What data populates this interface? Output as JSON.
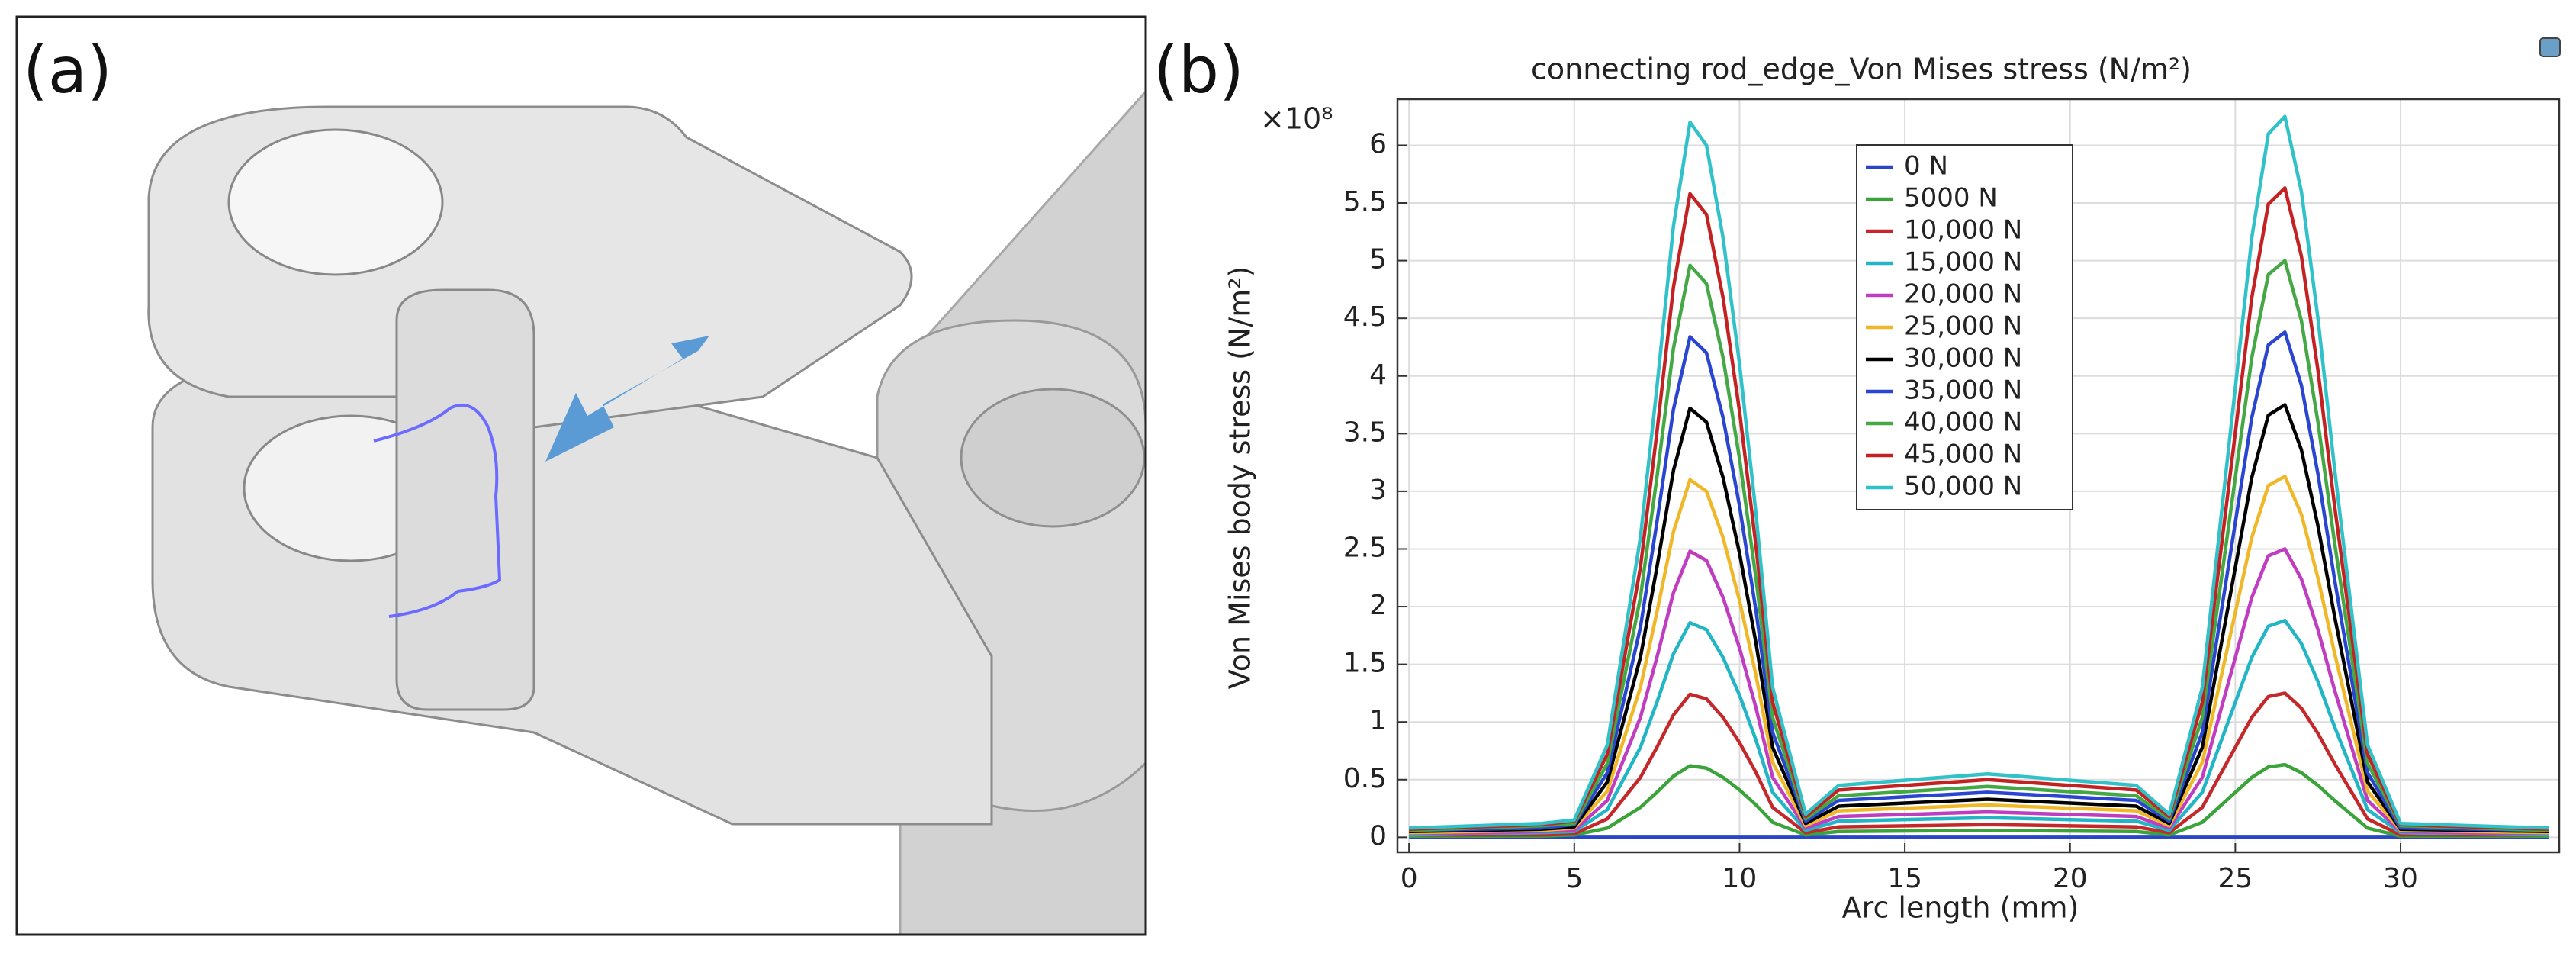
{
  "panels": [
    "(a)",
    "(b)"
  ],
  "chart_data": {
    "type": "line",
    "title": "connecting rod_edge_Von Mises stress (N/m²)",
    "x_label": "Arc length (mm)",
    "y_label": "Von Mises body stress (N/m²)",
    "y_multiplier": "×10⁸",
    "xlim": [
      -0.35,
      34.8
    ],
    "ylim": [
      -0.13,
      6.4
    ],
    "xticks": [
      0,
      5,
      10,
      15,
      20,
      25,
      30
    ],
    "yticks": [
      0,
      0.5,
      1,
      1.5,
      2,
      2.5,
      3,
      3.5,
      4,
      4.5,
      5,
      5.5,
      6
    ],
    "grid": true,
    "legend": "upper center",
    "x": [
      0,
      4,
      5,
      6,
      7,
      7.5,
      8,
      8.5,
      9,
      9.5,
      10,
      10.5,
      11,
      12,
      13,
      17.5,
      22,
      23,
      24,
      24.5,
      25,
      25.5,
      26,
      26.5,
      27,
      27.5,
      28,
      29,
      30,
      34.5
    ],
    "series": [
      {
        "name": "0 N",
        "color": "#2a46c8",
        "values": [
          0,
          0,
          0,
          0,
          0,
          0,
          0,
          0,
          0,
          0,
          0,
          0,
          0,
          0,
          0,
          0,
          0,
          0,
          0,
          0,
          0,
          0,
          0,
          0,
          0,
          0,
          0,
          0,
          0,
          0
        ]
      },
      {
        "name": "5000 N",
        "color": "#3aa33a",
        "values": [
          0.01,
          0.01,
          0.02,
          0.08,
          0.26,
          0.39,
          0.53,
          0.62,
          0.6,
          0.52,
          0.41,
          0.28,
          0.13,
          0.02,
          0.05,
          0.06,
          0.05,
          0.02,
          0.13,
          0.26,
          0.39,
          0.52,
          0.61,
          0.63,
          0.56,
          0.45,
          0.32,
          0.08,
          0.01,
          0.01
        ]
      },
      {
        "name": "10,000 N",
        "color": "#c4282a",
        "values": [
          0.02,
          0.02,
          0.03,
          0.16,
          0.52,
          0.78,
          1.06,
          1.24,
          1.2,
          1.04,
          0.82,
          0.56,
          0.26,
          0.04,
          0.09,
          0.11,
          0.09,
          0.04,
          0.26,
          0.52,
          0.78,
          1.04,
          1.22,
          1.25,
          1.12,
          0.9,
          0.64,
          0.16,
          0.02,
          0.02
        ]
      },
      {
        "name": "15,000 N",
        "color": "#22b5c5",
        "values": [
          0.02,
          0.04,
          0.05,
          0.24,
          0.78,
          1.17,
          1.59,
          1.86,
          1.8,
          1.56,
          1.23,
          0.84,
          0.39,
          0.06,
          0.14,
          0.17,
          0.14,
          0.06,
          0.39,
          0.78,
          1.17,
          1.56,
          1.83,
          1.88,
          1.68,
          1.35,
          0.96,
          0.24,
          0.04,
          0.02
        ]
      },
      {
        "name": "20,000 N",
        "color": "#c03cc0",
        "values": [
          0.03,
          0.05,
          0.06,
          0.32,
          1.04,
          1.56,
          2.12,
          2.48,
          2.4,
          2.08,
          1.64,
          1.12,
          0.52,
          0.08,
          0.18,
          0.22,
          0.18,
          0.08,
          0.52,
          1.04,
          1.56,
          2.08,
          2.44,
          2.5,
          2.24,
          1.8,
          1.28,
          0.32,
          0.05,
          0.03
        ]
      },
      {
        "name": "25,000 N",
        "color": "#f0b828",
        "values": [
          0.04,
          0.06,
          0.08,
          0.4,
          1.3,
          1.95,
          2.65,
          3.1,
          3.0,
          2.6,
          2.05,
          1.4,
          0.65,
          0.1,
          0.23,
          0.28,
          0.23,
          0.1,
          0.65,
          1.3,
          1.95,
          2.6,
          3.05,
          3.13,
          2.8,
          2.25,
          1.6,
          0.4,
          0.06,
          0.04
        ]
      },
      {
        "name": "30,000 N",
        "color": "#000000",
        "values": [
          0.05,
          0.07,
          0.09,
          0.48,
          1.56,
          2.34,
          3.18,
          3.72,
          3.6,
          3.12,
          2.46,
          1.68,
          0.78,
          0.12,
          0.27,
          0.33,
          0.27,
          0.12,
          0.78,
          1.56,
          2.34,
          3.12,
          3.66,
          3.75,
          3.36,
          2.7,
          1.92,
          0.48,
          0.07,
          0.05
        ]
      },
      {
        "name": "35,000 N",
        "color": "#2a46d0",
        "values": [
          0.06,
          0.08,
          0.11,
          0.56,
          1.82,
          2.73,
          3.71,
          4.34,
          4.2,
          3.64,
          2.87,
          1.96,
          0.91,
          0.14,
          0.32,
          0.39,
          0.32,
          0.14,
          0.91,
          1.82,
          2.73,
          3.64,
          4.27,
          4.38,
          3.92,
          3.15,
          2.24,
          0.56,
          0.08,
          0.06
        ]
      },
      {
        "name": "40,000 N",
        "color": "#44a844",
        "values": [
          0.06,
          0.1,
          0.12,
          0.64,
          2.08,
          3.12,
          4.24,
          4.96,
          4.8,
          4.16,
          3.28,
          2.24,
          1.04,
          0.16,
          0.36,
          0.44,
          0.36,
          0.16,
          1.04,
          2.08,
          3.12,
          4.16,
          4.88,
          5.0,
          4.48,
          3.6,
          2.56,
          0.64,
          0.1,
          0.06
        ]
      },
      {
        "name": "45,000 N",
        "color": "#c42222",
        "values": [
          0.07,
          0.11,
          0.14,
          0.72,
          2.34,
          3.51,
          4.77,
          5.58,
          5.4,
          4.68,
          3.69,
          2.52,
          1.17,
          0.18,
          0.41,
          0.5,
          0.41,
          0.18,
          1.17,
          2.34,
          3.51,
          4.68,
          5.49,
          5.63,
          5.04,
          4.05,
          2.88,
          0.72,
          0.11,
          0.07
        ]
      },
      {
        "name": "50,000 N",
        "color": "#30c2c8",
        "values": [
          0.08,
          0.12,
          0.15,
          0.8,
          2.6,
          3.9,
          5.3,
          6.2,
          6.0,
          5.2,
          4.1,
          2.8,
          1.3,
          0.2,
          0.45,
          0.55,
          0.45,
          0.2,
          1.3,
          2.6,
          3.9,
          5.2,
          6.1,
          6.25,
          5.6,
          4.5,
          3.2,
          0.8,
          0.12,
          0.08
        ]
      }
    ]
  }
}
